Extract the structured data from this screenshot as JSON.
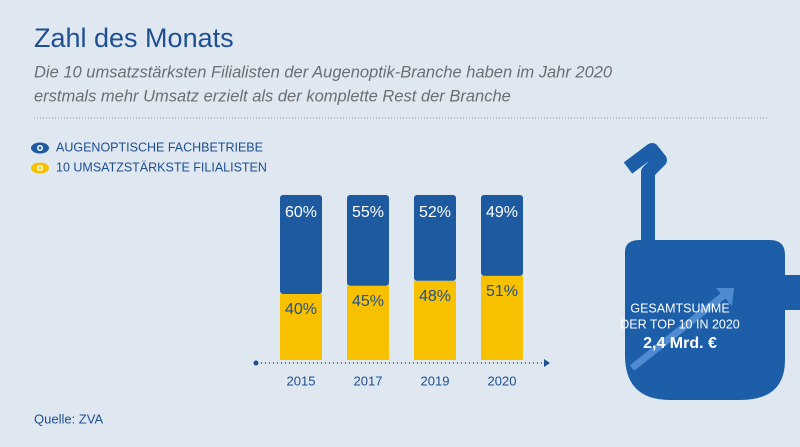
{
  "chart_data": {
    "type": "stacked-bar",
    "title": "Zahl des Monats",
    "subtitle": [
      "Die 10 umsatzstärksten Filialisten der Augenoptik-Branche haben im Jahr 2020",
      "erstmals mehr Umsatz erzielt als der komplette Rest der Branche"
    ],
    "categories": [
      "2015",
      "2017",
      "2019",
      "2020"
    ],
    "series": [
      {
        "name": "AUGENOPTISCHE FACHBETRIEBE",
        "color": "#1d5a9f",
        "values": [
          60,
          55,
          52,
          49
        ],
        "value_labels": [
          "60%",
          "55%",
          "52%",
          "49%"
        ]
      },
      {
        "name": "10 UMSATZSTÄRKSTE FILIALISTEN",
        "color": "#f8c100",
        "values": [
          40,
          45,
          48,
          51
        ],
        "value_labels": [
          "40%",
          "45%",
          "48%",
          "51%"
        ]
      }
    ],
    "ylim": [
      0,
      100
    ],
    "annotation": [
      "GESAMTSUMME",
      "DER TOP 10 IN 2020",
      "2,4 Mrd. €"
    ],
    "source": "Quelle: ZVA"
  }
}
